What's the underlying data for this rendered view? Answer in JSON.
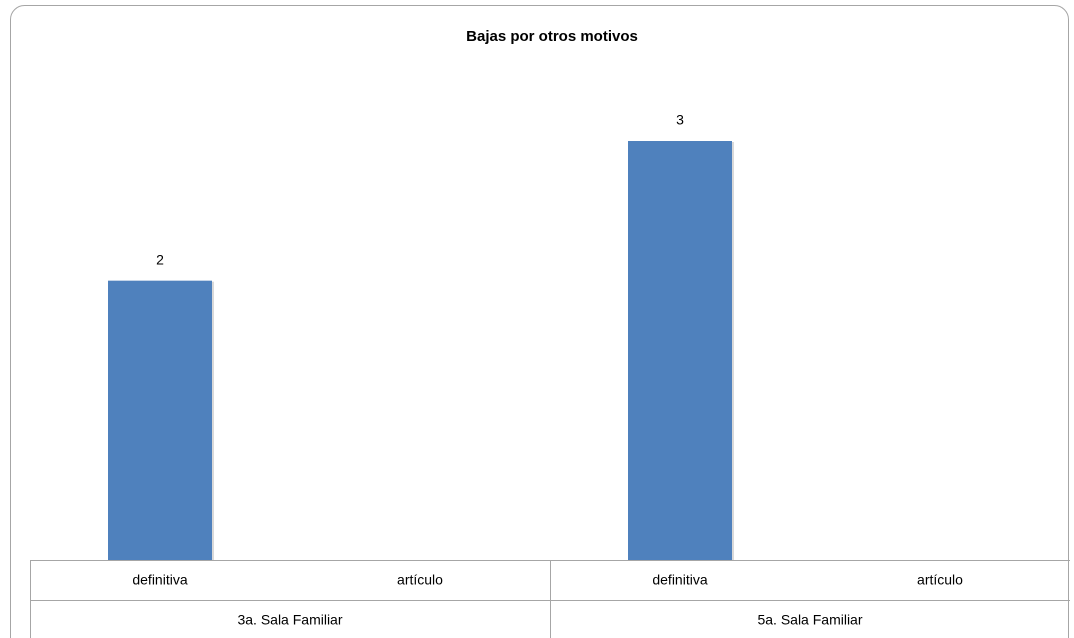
{
  "chart_data": {
    "type": "bar",
    "title": "Bajas por otros motivos",
    "categories": [
      "definitiva",
      "artículo",
      "definitiva",
      "artículo"
    ],
    "groups": [
      "3a. Sala Familiar",
      "5a. Sala Familiar"
    ],
    "values": [
      2,
      null,
      3,
      null
    ],
    "color": "#4f81bd",
    "data_labels": true
  }
}
